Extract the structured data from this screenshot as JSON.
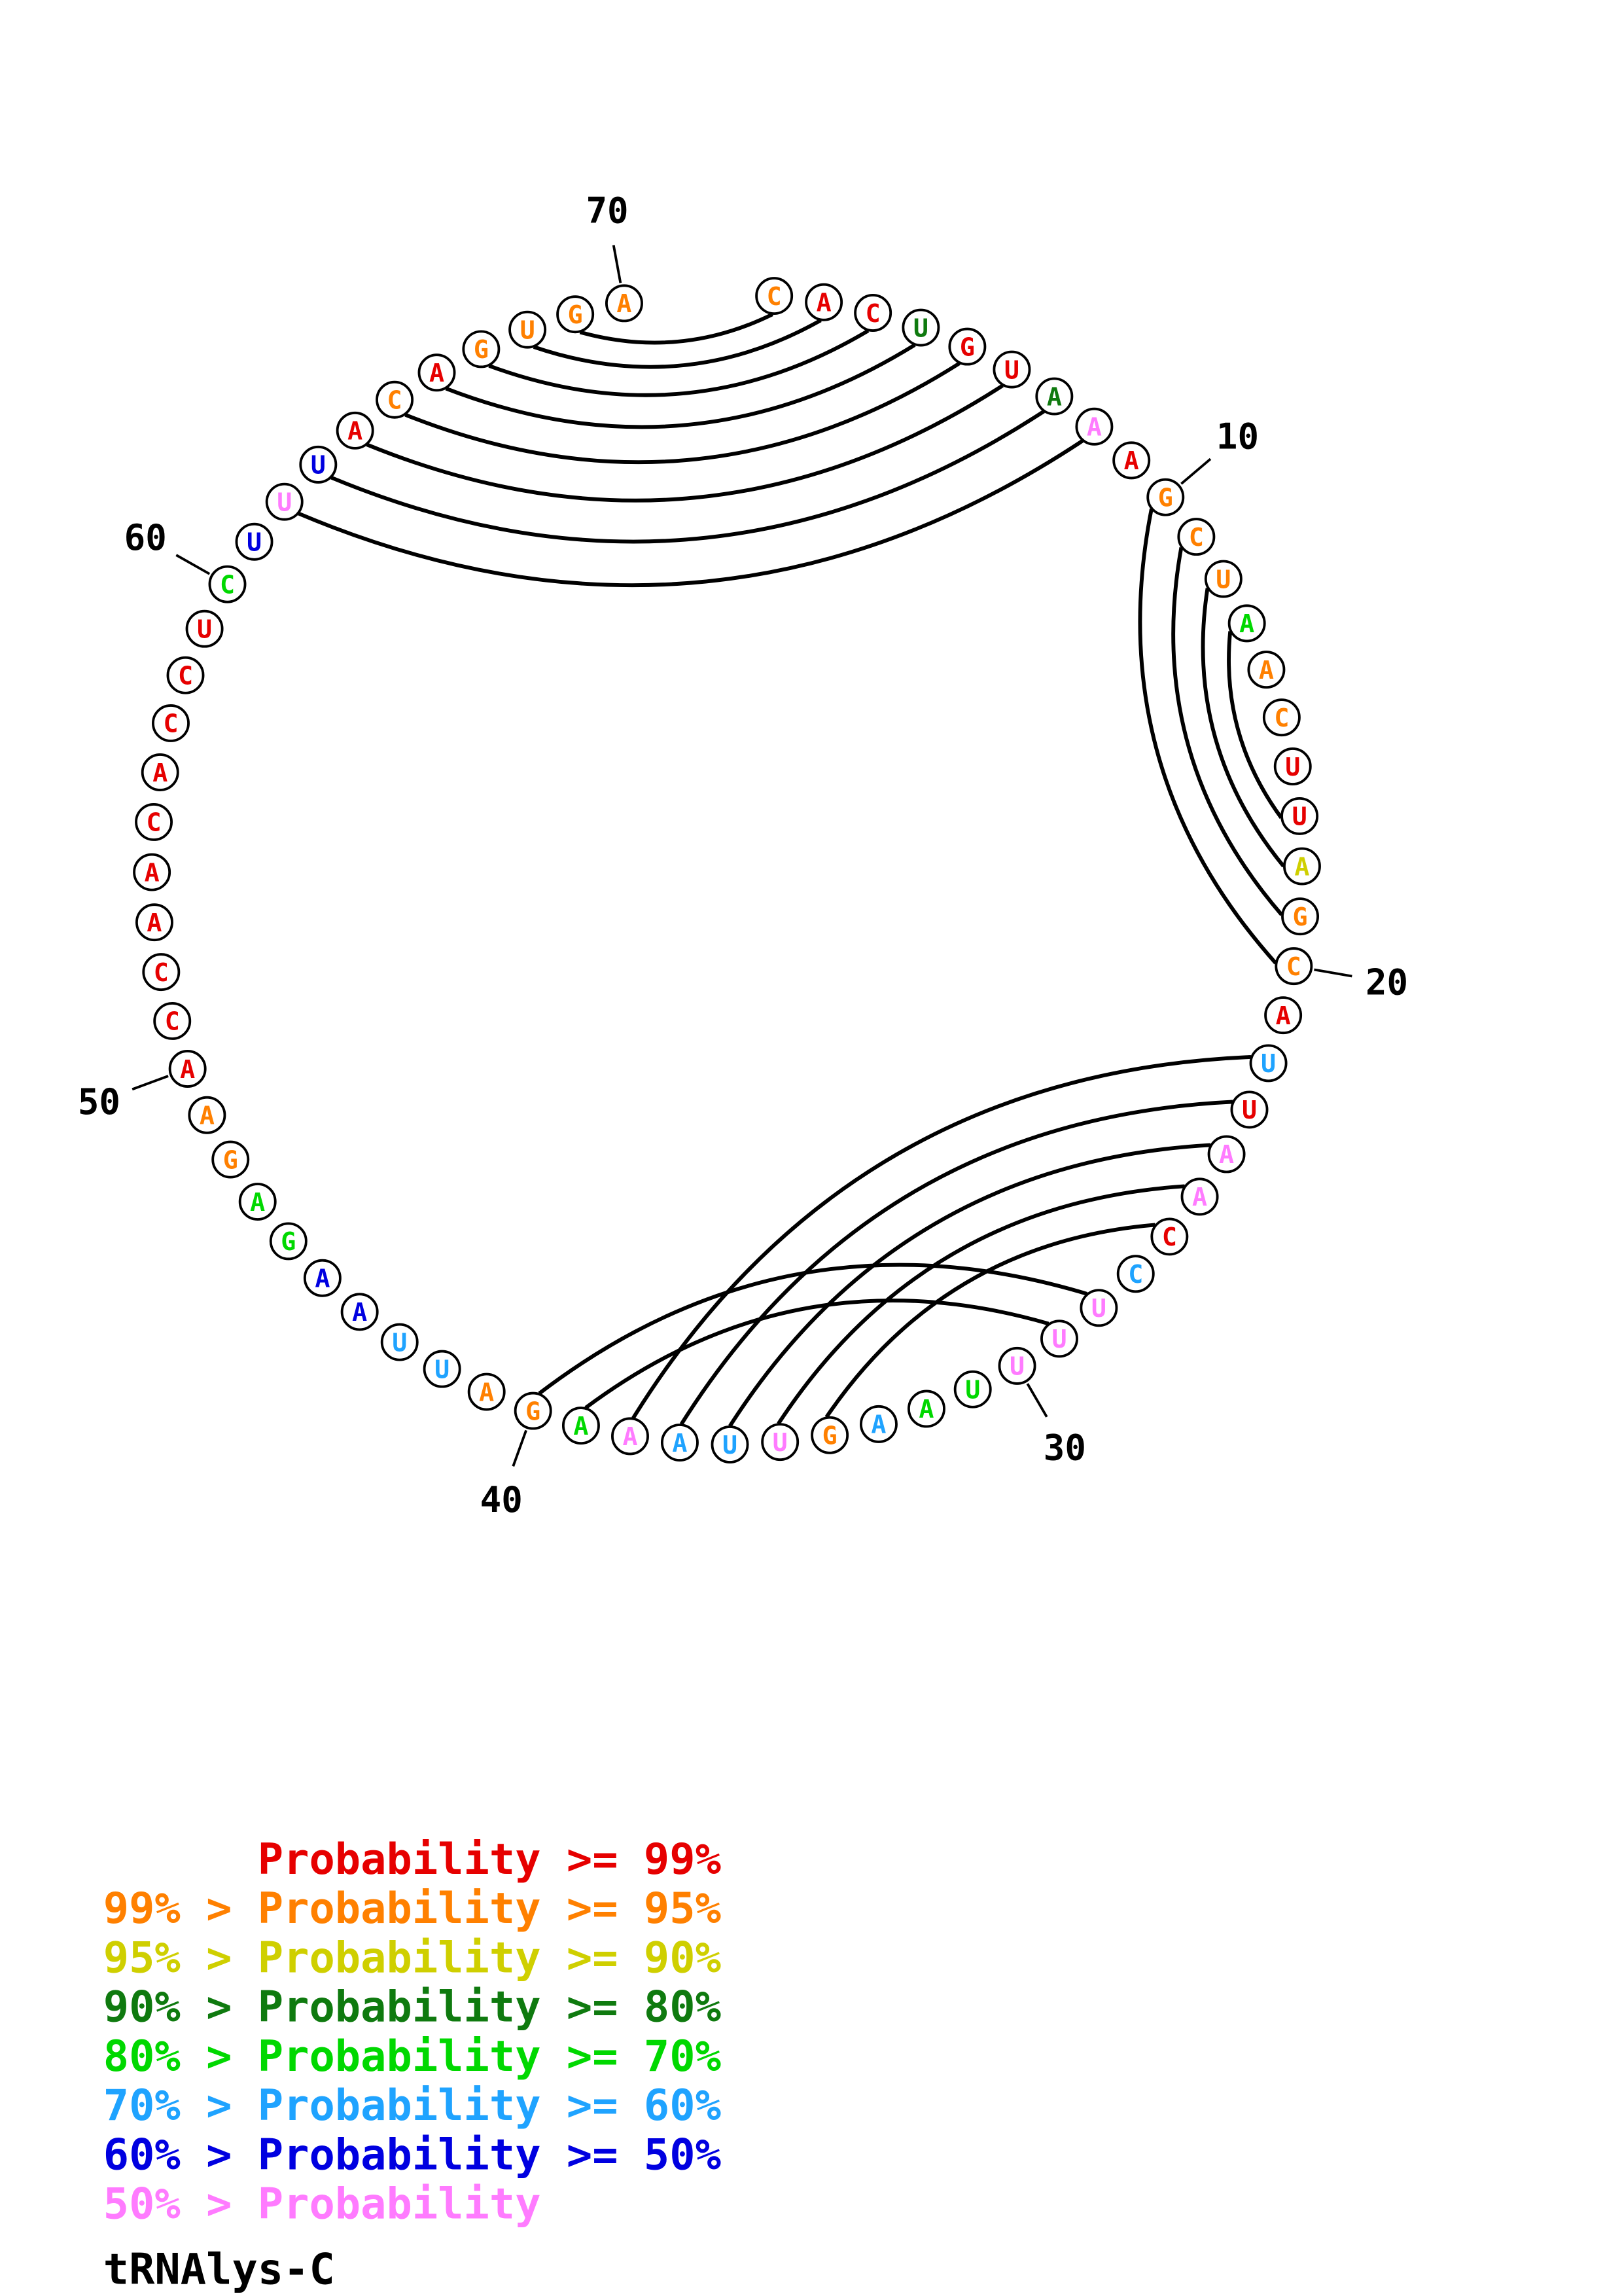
{
  "title": "tRNAlys-C",
  "colors": {
    "p99": "#e60000",
    "p95": "#ff8000",
    "p90": "#cfcf00",
    "p80": "#0f7a0f",
    "p70": "#00d800",
    "p60": "#1fa3ff",
    "p50": "#0000e0",
    "plt50": "#ff7bff",
    "stroke": "#000000",
    "background": "#ffffff"
  },
  "legend": [
    {
      "bin": "p99",
      "text": "      Probability >= 99%"
    },
    {
      "bin": "p95",
      "text": "99% > Probability >= 95%"
    },
    {
      "bin": "p90",
      "text": "95% > Probability >= 90%"
    },
    {
      "bin": "p80",
      "text": "90% > Probability >= 80%"
    },
    {
      "bin": "p70",
      "text": "80% > Probability >= 70%"
    },
    {
      "bin": "p60",
      "text": "70% > Probability >= 60%"
    },
    {
      "bin": "p50",
      "text": "60% > Probability >= 50%"
    },
    {
      "bin": "plt50",
      "text": "50% > Probability"
    }
  ],
  "plot": {
    "sequence": "CACUGUAAAGCUAACUUAGCAUUAACCUUUUAAGUUAAAGAUUAAGAGAACCAACACCUCUUUACAGUGA",
    "probability_bins": [
      "p95",
      "p99",
      "p99",
      "p80",
      "p99",
      "p99",
      "p80",
      "plt50",
      "p99",
      "p95",
      "p95",
      "p95",
      "p70",
      "p95",
      "p95",
      "p99",
      "p99",
      "p90",
      "p95",
      "p95",
      "p99",
      "p60",
      "p99",
      "plt50",
      "plt50",
      "p99",
      "p60",
      "plt50",
      "plt50",
      "plt50",
      "p70",
      "p70",
      "p60",
      "p95",
      "plt50",
      "p60",
      "p60",
      "plt50",
      "p70",
      "p95",
      "p95",
      "p60",
      "p60",
      "p50",
      "p50",
      "p70",
      "p70",
      "p95",
      "p95",
      "p99",
      "p99",
      "p99",
      "p99",
      "p99",
      "p99",
      "p99",
      "p99",
      "p99",
      "p99",
      "p70",
      "p50",
      "plt50",
      "p50",
      "p99",
      "p95",
      "p99",
      "p95",
      "p95",
      "p95",
      "p95"
    ],
    "pairs": [
      [
        1,
        69
      ],
      [
        2,
        68
      ],
      [
        3,
        67
      ],
      [
        4,
        66
      ],
      [
        5,
        65
      ],
      [
        6,
        64
      ],
      [
        7,
        63
      ],
      [
        8,
        62
      ],
      [
        10,
        20
      ],
      [
        11,
        19
      ],
      [
        12,
        18
      ],
      [
        13,
        17
      ],
      [
        22,
        38
      ],
      [
        23,
        37
      ],
      [
        24,
        36
      ],
      [
        25,
        35
      ],
      [
        26,
        34
      ],
      [
        28,
        40
      ],
      [
        29,
        39
      ]
    ],
    "ticks": [
      {
        "pos": 10,
        "label": "10"
      },
      {
        "pos": 20,
        "label": "20"
      },
      {
        "pos": 30,
        "label": "30"
      },
      {
        "pos": 40,
        "label": "40"
      },
      {
        "pos": 50,
        "label": "50"
      },
      {
        "pos": 60,
        "label": "60"
      },
      {
        "pos": 70,
        "label": "70"
      }
    ]
  }
}
